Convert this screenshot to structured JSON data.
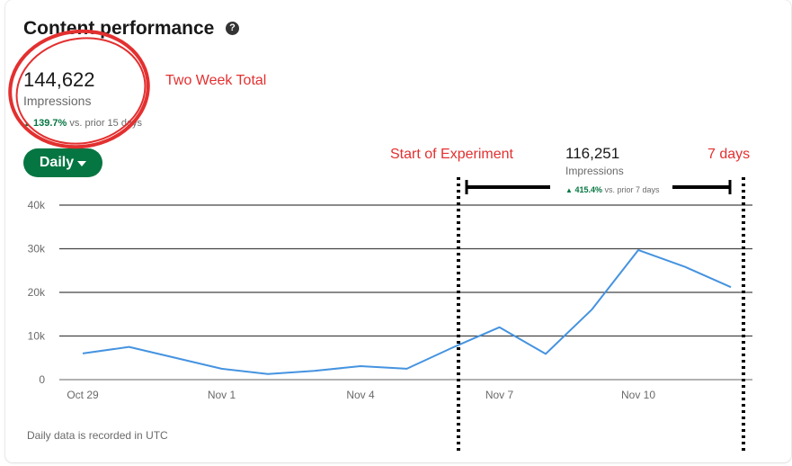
{
  "card": {
    "title": "Content performance",
    "help_icon": "question-circle-icon",
    "total": {
      "value": "144,622",
      "label": "Impressions",
      "change": "139.7%",
      "change_suffix": "vs. prior 15 days"
    },
    "daily_button": {
      "label": "Daily",
      "icon": "caret-down-icon"
    },
    "week": {
      "value": "116,251",
      "label": "Impressions",
      "change": "415.4%",
      "change_suffix": "vs. prior 7 days"
    },
    "footer": "Daily data is recorded in UTC"
  },
  "annotations": {
    "two_week_total": "Two Week Total",
    "start_of_experiment": "Start of Experiment",
    "seven_days": "7 days"
  },
  "colors": {
    "line": "#4593e0",
    "accent_green": "#057642",
    "annotation_red": "#e33030",
    "grid": "#444444"
  },
  "chart_data": {
    "type": "line",
    "title": "",
    "xlabel": "",
    "ylabel": "",
    "x_tick_labels": [
      "Oct 29",
      "Nov 1",
      "Nov 4",
      "Nov 7",
      "Nov 10"
    ],
    "y_tick_labels": [
      "0",
      "10k",
      "20k",
      "30k",
      "40k"
    ],
    "ylim": [
      0,
      40000
    ],
    "grid": true,
    "series": [
      {
        "name": "",
        "x": [
          "Oct 29",
          "Oct 30",
          "Oct 31",
          "Nov 1",
          "Nov 2",
          "Nov 3",
          "Nov 4",
          "Nov 5",
          "Nov 6",
          "Nov 7",
          "Nov 8",
          "Nov 9",
          "Nov 10",
          "Nov 11",
          "Nov 12"
        ],
        "values": [
          6000,
          7500,
          5000,
          2500,
          1300,
          2000,
          3100,
          2500,
          7400,
          12000,
          5900,
          16100,
          29700,
          25900,
          21200
        ]
      }
    ]
  }
}
